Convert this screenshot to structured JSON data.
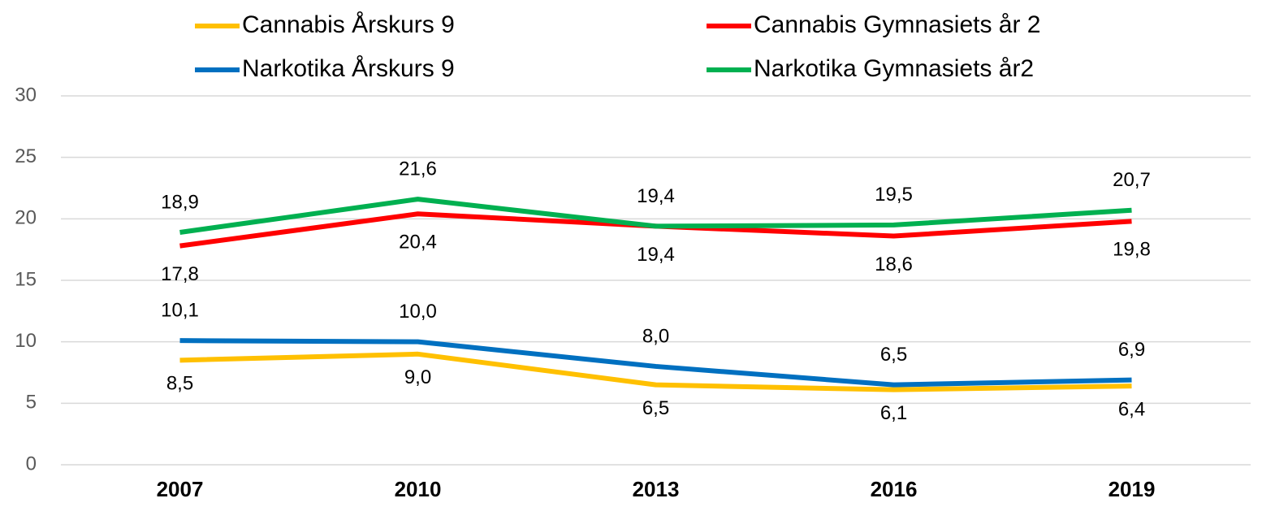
{
  "chart_data": {
    "type": "line",
    "categories": [
      "2007",
      "2010",
      "2013",
      "2016",
      "2019"
    ],
    "series": [
      {
        "name": "Cannabis Årskurs 9",
        "color": "#ffc000",
        "values": [
          8.5,
          9.0,
          6.5,
          6.1,
          6.4
        ],
        "value_labels": [
          "8,5",
          "9,0",
          "6,5",
          "6,1",
          "6,4"
        ]
      },
      {
        "name": "Cannabis Gymnasiets år 2",
        "color": "#ff0000",
        "values": [
          17.8,
          20.4,
          19.4,
          18.6,
          19.8
        ],
        "value_labels": [
          "17,8",
          "20,4",
          "19,4",
          "18,6",
          "19,8"
        ]
      },
      {
        "name": "Narkotika Årskurs 9",
        "color": "#0070c0",
        "values": [
          10.1,
          10.0,
          8.0,
          6.5,
          6.9
        ],
        "value_labels": [
          "10,1",
          "10,0",
          "8,0",
          "6,5",
          "6,9"
        ]
      },
      {
        "name": "Narkotika Gymnasiets år2",
        "color": "#00b050",
        "values": [
          18.9,
          21.6,
          19.4,
          19.5,
          20.7
        ],
        "value_labels": [
          "18,9",
          "21,6",
          "19,4",
          "19,5",
          "20,7"
        ]
      }
    ],
    "ylim": [
      0,
      30
    ],
    "yticks": [
      0,
      5,
      10,
      15,
      20,
      25,
      30
    ],
    "grid": true,
    "legend": "top"
  }
}
